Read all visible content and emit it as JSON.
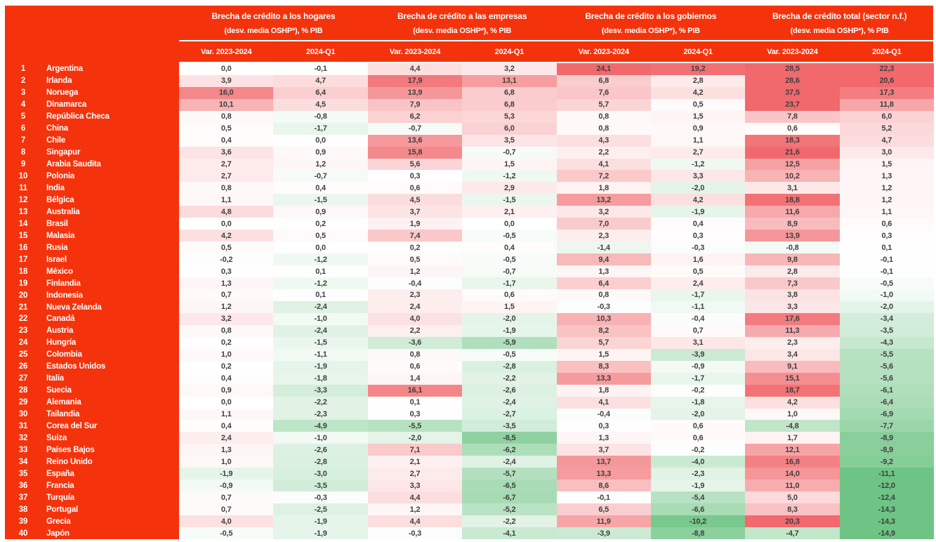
{
  "colors": {
    "brand_red": "#f4330c",
    "header_text": "#ffffff",
    "cell_text": "#3f3f3f",
    "scale_positive_max": "#f1696d",
    "scale_negative_max": "#6ec484",
    "scale_zero": "#ffffff"
  },
  "chart_data": {
    "type": "heatmap",
    "unit": "% PIB",
    "decimal_separator": ",",
    "column_groups": [
      {
        "title": "Brecha de crédito a los hogares",
        "subtitle": "(desv. media OSHP*), % PIB"
      },
      {
        "title": "Brecha de crédito a las empresas",
        "subtitle": "(desv. media OSHP*), % PIB"
      },
      {
        "title": "Brecha de crédito a los gobiernos",
        "subtitle": "(desv. media OSHP*), % PIB"
      },
      {
        "title": "Brecha de crédito total (sector n.f.)",
        "subtitle": "(desv. media OSHP*), % PIB"
      }
    ],
    "sub_columns": [
      "Var. 2023-2024",
      "2024-Q1"
    ],
    "color_scale": {
      "zero_color": "#ffffff",
      "positive_color": "#f1696d",
      "negative_color": "#6ec484",
      "positive_cap": 20,
      "negative_cap": 11
    },
    "rows": [
      {
        "rank": 1,
        "country": "Argentina",
        "values": [
          0.0,
          -0.1,
          4.4,
          3.2,
          24.1,
          19.2,
          28.5,
          22.3
        ]
      },
      {
        "rank": 2,
        "country": "Irlanda",
        "values": [
          3.9,
          4.7,
          17.9,
          13.1,
          6.8,
          2.8,
          28.6,
          20.6
        ]
      },
      {
        "rank": 3,
        "country": "Noruega",
        "values": [
          16.0,
          6.4,
          13.9,
          6.8,
          7.6,
          4.2,
          37.5,
          17.3
        ]
      },
      {
        "rank": 4,
        "country": "Dinamarca",
        "values": [
          10.1,
          4.5,
          7.9,
          6.8,
          5.7,
          0.5,
          23.7,
          11.8
        ]
      },
      {
        "rank": 5,
        "country": "República Checa",
        "values": [
          0.8,
          -0.8,
          6.2,
          5.3,
          0.8,
          1.5,
          7.8,
          6.0
        ]
      },
      {
        "rank": 6,
        "country": "China",
        "values": [
          0.5,
          -1.7,
          -0.7,
          6.0,
          0.8,
          0.9,
          0.6,
          5.2
        ]
      },
      {
        "rank": 7,
        "country": "Chile",
        "values": [
          0.4,
          0.0,
          13.6,
          3.5,
          4.3,
          1.1,
          18.3,
          4.7
        ]
      },
      {
        "rank": 8,
        "country": "Singapur",
        "values": [
          3.6,
          0.9,
          15.8,
          -0.7,
          2.2,
          2.7,
          21.6,
          3.0
        ]
      },
      {
        "rank": 9,
        "country": "Arabia Saudita",
        "values": [
          2.7,
          1.2,
          5.6,
          1.5,
          4.1,
          -1.2,
          12.5,
          1.5
        ]
      },
      {
        "rank": 10,
        "country": "Polonia",
        "values": [
          2.7,
          -0.7,
          0.3,
          -1.2,
          7.2,
          3.3,
          10.2,
          1.3
        ]
      },
      {
        "rank": 11,
        "country": "India",
        "values": [
          0.8,
          0.4,
          0.6,
          2.9,
          1.8,
          -2.0,
          3.1,
          1.2
        ]
      },
      {
        "rank": 12,
        "country": "Bélgica",
        "values": [
          1.1,
          -1.5,
          4.5,
          -1.5,
          13.2,
          4.2,
          18.8,
          1.2
        ]
      },
      {
        "rank": 13,
        "country": "Australia",
        "values": [
          4.8,
          0.9,
          3.7,
          2.1,
          3.2,
          -1.9,
          11.6,
          1.1
        ]
      },
      {
        "rank": 14,
        "country": "Brasil",
        "values": [
          0.0,
          0.2,
          1.9,
          0.0,
          7.0,
          0.4,
          8.9,
          0.6
        ]
      },
      {
        "rank": 15,
        "country": "Malasia",
        "values": [
          4.2,
          0.5,
          7.4,
          -0.5,
          2.3,
          0.3,
          13.9,
          0.3
        ]
      },
      {
        "rank": 16,
        "country": "Rusia",
        "values": [
          0.5,
          0.0,
          0.2,
          0.4,
          -1.4,
          -0.3,
          -0.8,
          0.1
        ]
      },
      {
        "rank": 17,
        "country": "Israel",
        "values": [
          -0.2,
          -1.2,
          0.5,
          -0.5,
          9.4,
          1.6,
          9.8,
          -0.1
        ]
      },
      {
        "rank": 18,
        "country": "México",
        "values": [
          0.3,
          0.1,
          1.2,
          -0.7,
          1.3,
          0.5,
          2.8,
          -0.1
        ]
      },
      {
        "rank": 19,
        "country": "Finlandia",
        "values": [
          1.3,
          -1.2,
          -0.4,
          -1.7,
          6.4,
          2.4,
          7.3,
          -0.5
        ]
      },
      {
        "rank": 20,
        "country": "Indonesia",
        "values": [
          0.7,
          0.1,
          2.3,
          0.6,
          0.8,
          -1.7,
          3.8,
          -1.0
        ]
      },
      {
        "rank": 21,
        "country": "Nueva Zelanda",
        "values": [
          1.2,
          -2.4,
          2.4,
          1.5,
          -0.3,
          -1.1,
          3.3,
          -2.0
        ]
      },
      {
        "rank": 22,
        "country": "Canadá",
        "values": [
          3.2,
          -1.0,
          4.0,
          -2.0,
          10.3,
          -0.4,
          17.6,
          -3.4
        ]
      },
      {
        "rank": 23,
        "country": "Austria",
        "values": [
          0.8,
          -2.4,
          2.2,
          -1.9,
          8.2,
          0.7,
          11.3,
          -3.5
        ]
      },
      {
        "rank": 24,
        "country": "Hungría",
        "values": [
          0.2,
          -1.5,
          -3.6,
          -5.9,
          5.7,
          3.1,
          2.3,
          -4.3
        ]
      },
      {
        "rank": 25,
        "country": "Colombia",
        "values": [
          1.0,
          -1.1,
          0.8,
          -0.5,
          1.5,
          -3.9,
          3.4,
          -5.5
        ]
      },
      {
        "rank": 26,
        "country": "Estados Unidos",
        "values": [
          0.2,
          -1.9,
          0.6,
          -2.8,
          8.3,
          -0.9,
          9.1,
          -5.6
        ]
      },
      {
        "rank": 27,
        "country": "Italia",
        "values": [
          0.4,
          -1.8,
          1.4,
          -2.2,
          13.3,
          -1.7,
          15.1,
          -5.6
        ]
      },
      {
        "rank": 28,
        "country": "Suecia",
        "values": [
          0.9,
          -3.3,
          16.1,
          -2.6,
          1.8,
          -0.2,
          18.7,
          -6.1
        ]
      },
      {
        "rank": 29,
        "country": "Alemania",
        "values": [
          0.0,
          -2.2,
          0.1,
          -2.4,
          4.1,
          -1.8,
          4.2,
          -6.4
        ]
      },
      {
        "rank": 30,
        "country": "Tailandia",
        "values": [
          1.1,
          -2.3,
          0.3,
          -2.7,
          -0.4,
          -2.0,
          1.0,
          -6.9
        ]
      },
      {
        "rank": 31,
        "country": "Corea del Sur",
        "values": [
          0.4,
          -4.9,
          -5.5,
          -3.5,
          0.3,
          0.6,
          -4.8,
          -7.7
        ]
      },
      {
        "rank": 32,
        "country": "Suiza",
        "values": [
          2.4,
          -1.0,
          -2.0,
          -8.5,
          1.3,
          0.6,
          1.7,
          -8.9
        ]
      },
      {
        "rank": 33,
        "country": "Países Bajos",
        "values": [
          1.3,
          -2.6,
          7.1,
          -6.2,
          3.7,
          -0.2,
          12.1,
          -8.9
        ]
      },
      {
        "rank": 34,
        "country": "Reino Unido",
        "values": [
          1.0,
          -2.8,
          2.1,
          -2.4,
          13.7,
          -4.0,
          16.8,
          -9.2
        ]
      },
      {
        "rank": 35,
        "country": "España",
        "values": [
          -1.9,
          -3.0,
          2.7,
          -5.7,
          13.3,
          -2.3,
          14.0,
          -11.1
        ]
      },
      {
        "rank": 36,
        "country": "Francia",
        "values": [
          -0.9,
          -3.5,
          3.3,
          -6.5,
          8.6,
          -1.9,
          11.0,
          -12.0
        ]
      },
      {
        "rank": 37,
        "country": "Turquía",
        "values": [
          0.7,
          -0.3,
          4.4,
          -6.7,
          -0.1,
          -5.4,
          5.0,
          -12.4
        ]
      },
      {
        "rank": 38,
        "country": "Portugal",
        "values": [
          0.7,
          -2.5,
          1.2,
          -5.2,
          6.5,
          -6.6,
          8.3,
          -14.3
        ]
      },
      {
        "rank": 39,
        "country": "Grecia",
        "values": [
          4.0,
          -1.9,
          4.4,
          -2.2,
          11.9,
          -10.2,
          20.3,
          -14.3
        ]
      },
      {
        "rank": 40,
        "country": "Japón",
        "values": [
          -0.5,
          -1.9,
          -0.3,
          -4.1,
          -3.9,
          -8.8,
          -4.7,
          -14.9
        ]
      }
    ]
  }
}
